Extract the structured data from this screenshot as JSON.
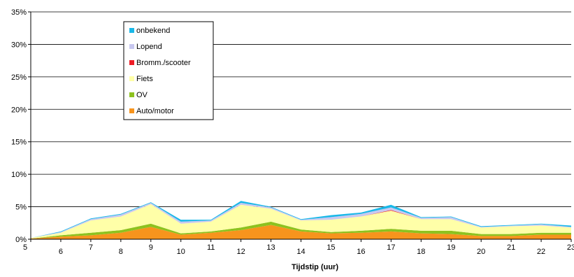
{
  "chart_data": {
    "type": "area",
    "stacked": true,
    "xlabel": "Tijdstip (uur)",
    "ylabel": "",
    "x": [
      5,
      6,
      7,
      8,
      9,
      10,
      11,
      12,
      13,
      14,
      15,
      16,
      17,
      18,
      19,
      20,
      21,
      22,
      23
    ],
    "y_ticks": [
      "0%",
      "5%",
      "10%",
      "15%",
      "20%",
      "25%",
      "30%",
      "35%"
    ],
    "ylim": [
      0,
      35
    ],
    "grid": true,
    "legend_position": "top-left",
    "series": [
      {
        "name": "Auto/motor",
        "color": "#f7941d",
        "values": [
          0.1,
          0.4,
          0.6,
          1.0,
          1.9,
          0.7,
          1.0,
          1.4,
          2.2,
          1.2,
          0.9,
          1.0,
          1.2,
          0.9,
          0.8,
          0.5,
          0.5,
          0.7,
          0.7
        ]
      },
      {
        "name": "OV",
        "color": "#8dc21f",
        "values": [
          0.0,
          0.2,
          0.4,
          0.4,
          0.5,
          0.2,
          0.2,
          0.4,
          0.5,
          0.3,
          0.2,
          0.3,
          0.4,
          0.4,
          0.5,
          0.3,
          0.3,
          0.3,
          0.3
        ]
      },
      {
        "name": "Fiets",
        "color": "#ffffa8",
        "values": [
          0.1,
          0.4,
          1.9,
          2.1,
          3.0,
          1.5,
          1.5,
          3.5,
          2.0,
          1.4,
          1.9,
          2.2,
          2.8,
          1.8,
          1.8,
          1.0,
          1.2,
          1.1,
          0.8
        ]
      },
      {
        "name": "Bromm./scooter",
        "color": "#ee1c25",
        "values": [
          0.0,
          0.0,
          0.0,
          0.0,
          0.0,
          0.0,
          0.0,
          0.0,
          0.0,
          0.0,
          0.0,
          0.0,
          0.1,
          0.0,
          0.0,
          0.0,
          0.0,
          0.0,
          0.0
        ]
      },
      {
        "name": "Lopend",
        "color": "#c8c8f0",
        "values": [
          0.0,
          0.1,
          0.2,
          0.3,
          0.2,
          0.3,
          0.2,
          0.3,
          0.2,
          0.1,
          0.4,
          0.4,
          0.4,
          0.2,
          0.3,
          0.1,
          0.1,
          0.2,
          0.1
        ]
      },
      {
        "name": "onbekend",
        "color": "#1ab8e8",
        "values": [
          0.0,
          0.1,
          0.1,
          0.1,
          0.1,
          0.3,
          0.1,
          0.3,
          0.1,
          0.1,
          0.3,
          0.2,
          0.4,
          0.1,
          0.1,
          0.1,
          0.1,
          0.1,
          0.2
        ]
      }
    ]
  }
}
